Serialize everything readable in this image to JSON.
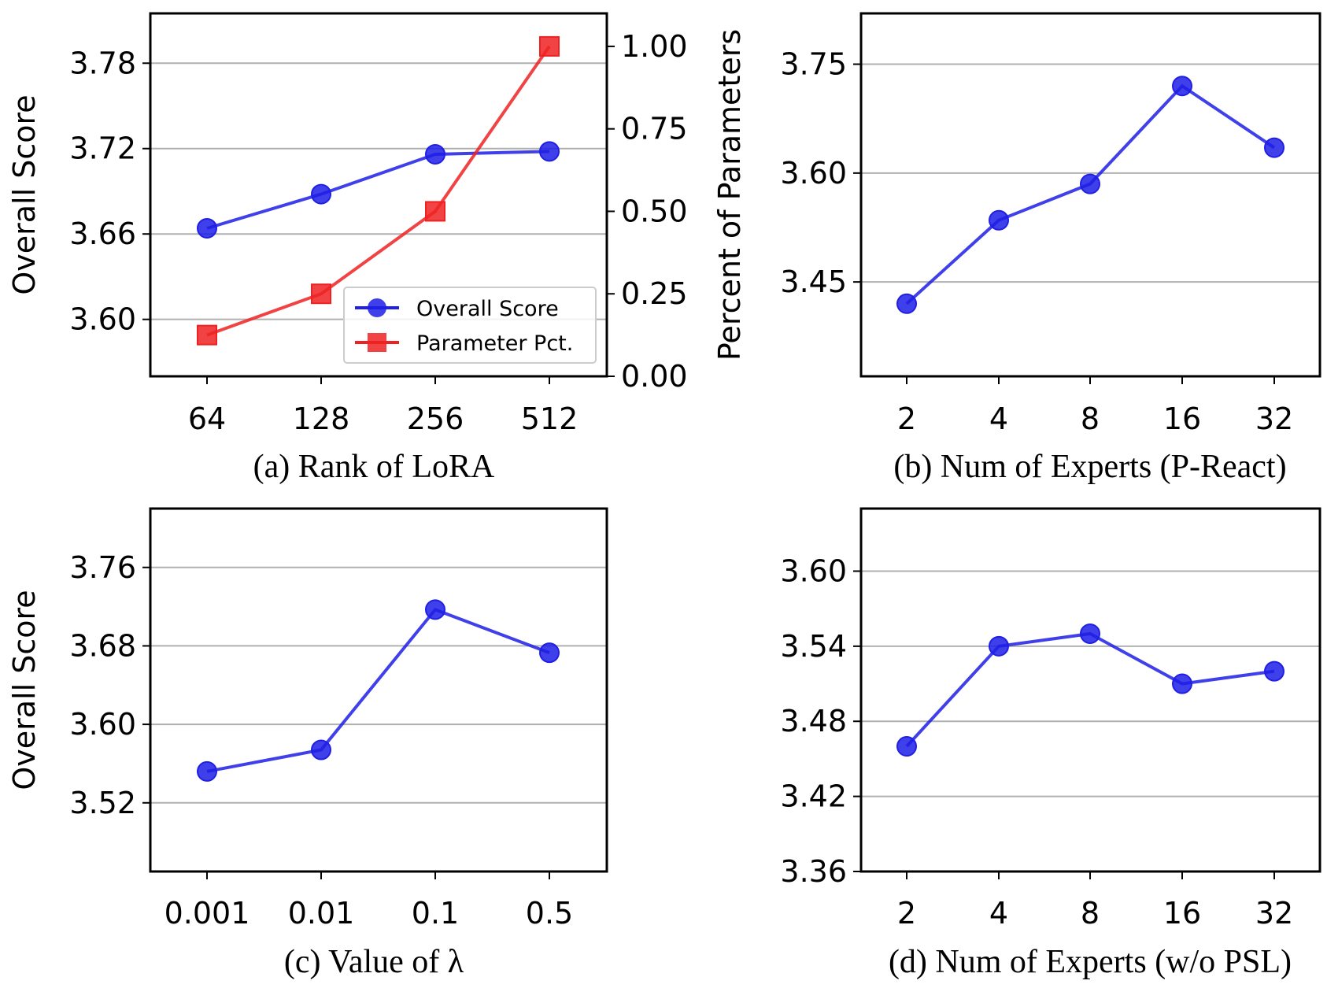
{
  "chart_data": [
    {
      "type": "line",
      "caption": "(a) Rank of LoRA",
      "categories": [
        "64",
        "128",
        "256",
        "512"
      ],
      "ylabel": "Overall Score",
      "y2label": "Percent of Parameters",
      "ylim": [
        3.56,
        3.815
      ],
      "yticks": [
        "3.60",
        "3.66",
        "3.72",
        "3.78"
      ],
      "y2lim": [
        0.0,
        1.1
      ],
      "y2ticks": [
        "0.00",
        "0.25",
        "0.50",
        "0.75",
        "1.00"
      ],
      "grid": "horizontal",
      "legend_position": "lower-right",
      "series": [
        {
          "name": "Overall Score",
          "axis": "left",
          "color": "#1f1fe6",
          "marker": "circle",
          "values": [
            3.664,
            3.688,
            3.716,
            3.718
          ]
        },
        {
          "name": "Parameter Pct.",
          "axis": "right",
          "color": "#ee2222",
          "marker": "square",
          "values": [
            0.125,
            0.25,
            0.5,
            1.0
          ]
        }
      ]
    },
    {
      "type": "line",
      "caption": "(b) Num of Experts (P-React)",
      "categories": [
        "2",
        "4",
        "8",
        "16",
        "32"
      ],
      "ylabel": "",
      "ylim": [
        3.32,
        3.82
      ],
      "yticks": [
        "3.45",
        "3.60",
        "3.75"
      ],
      "grid": "horizontal",
      "series": [
        {
          "name": "Overall Score",
          "color": "#1f1fe6",
          "marker": "circle",
          "values": [
            3.42,
            3.535,
            3.585,
            3.72,
            3.635
          ]
        }
      ]
    },
    {
      "type": "line",
      "caption": "(c) Value of λ",
      "categories": [
        "0.001",
        "0.01",
        "0.1",
        "0.5"
      ],
      "ylabel": "Overall Score",
      "ylim": [
        3.45,
        3.82
      ],
      "yticks": [
        "3.52",
        "3.60",
        "3.68",
        "3.76"
      ],
      "grid": "horizontal",
      "series": [
        {
          "name": "Overall Score",
          "color": "#1f1fe6",
          "marker": "circle",
          "values": [
            3.552,
            3.574,
            3.717,
            3.673
          ]
        }
      ]
    },
    {
      "type": "line",
      "caption": "(d) Num of Experts (w/o PSL)",
      "categories": [
        "2",
        "4",
        "8",
        "16",
        "32"
      ],
      "ylabel": "",
      "ylim": [
        3.36,
        3.65
      ],
      "yticks": [
        "3.36",
        "3.42",
        "3.48",
        "3.54",
        "3.60"
      ],
      "grid": "horizontal",
      "series": [
        {
          "name": "Overall Score",
          "color": "#1f1fe6",
          "marker": "circle",
          "values": [
            3.46,
            3.54,
            3.55,
            3.51,
            3.52
          ]
        }
      ]
    }
  ]
}
